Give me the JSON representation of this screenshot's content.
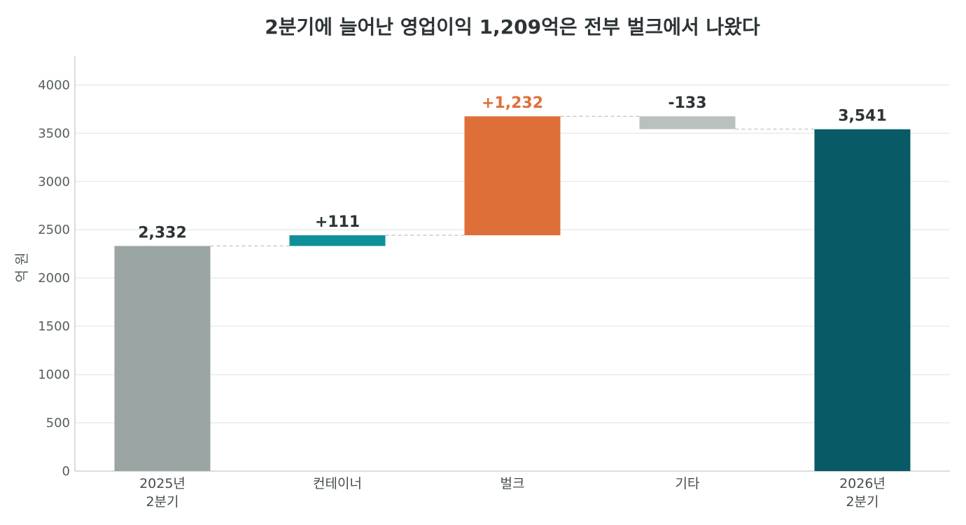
{
  "chart_data": {
    "type": "bar",
    "subtype": "waterfall",
    "title": "2분기에 늘어난 영업이익 1,209억은 전부 벌크에서 나왔다",
    "ylabel": "억 원",
    "xlabel": "",
    "ylim": [
      0,
      4300
    ],
    "yticks": [
      0,
      500,
      1000,
      1500,
      2000,
      2500,
      3000,
      3500,
      4000
    ],
    "grid": true,
    "steps": [
      {
        "label": [
          "2025년",
          "2분기"
        ],
        "kind": "total",
        "value": 2332,
        "value_label": "2,332",
        "color": "#9ba5a3",
        "label_color": "#2d3436"
      },
      {
        "label": [
          "컨테이너"
        ],
        "kind": "delta",
        "value": 111,
        "value_label": "+111",
        "color": "#0e8f9a",
        "label_color": "#2d3436"
      },
      {
        "label": [
          "벌크"
        ],
        "kind": "delta",
        "value": 1232,
        "value_label": "+1,232",
        "color": "#df6f39",
        "label_color": "#df6f39"
      },
      {
        "label": [
          "기타"
        ],
        "kind": "delta",
        "value": -133,
        "value_label": "-133",
        "color": "#b9c1be",
        "label_color": "#2d3436"
      },
      {
        "label": [
          "2026년",
          "2분기"
        ],
        "kind": "total",
        "value": 3541,
        "value_label": "3,541",
        "color": "#075a66",
        "label_color": "#2d3436"
      }
    ]
  }
}
